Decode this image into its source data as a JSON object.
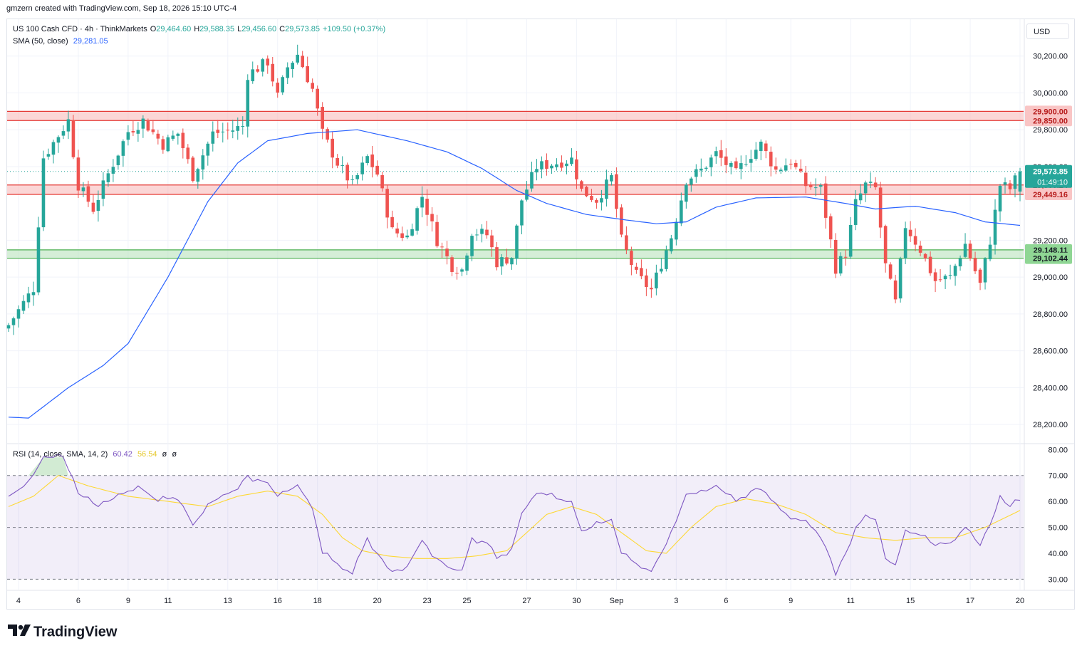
{
  "header": {
    "created_by": "gmzern created with TradingView.com, Sep 18, 2026 15:10 UTC-4"
  },
  "legend": {
    "symbol": "US 100 Cash CFD · 4h · ThinkMarkets",
    "open_label": "O",
    "open": "29,464.60",
    "high_label": "H",
    "high": "29,588.35",
    "low_label": "L",
    "low": "29,456.60",
    "close_label": "C",
    "close": "29,573.85",
    "change": "+109.50 (+0.37%)",
    "sma_label": "SMA (50, close)",
    "sma_value": "29,281.05"
  },
  "rsi_legend": {
    "label": "RSI (14, close, SMA, 14, 2)",
    "rsi_value": "60.42",
    "sma_value": "56.54",
    "extra1": "ø",
    "extra2": "ø"
  },
  "currency": "USD",
  "brand": "TradingView",
  "colors": {
    "up": "#26a69a",
    "down": "#ef5350",
    "sma": "#2962ff",
    "rsi": "#7e57c2",
    "rsi_sma": "#fdd835",
    "resistance_band": "#f7b4b4",
    "support_band": "#b3e0b6",
    "price_tag": "#26a69a"
  },
  "chart_data": [
    {
      "type": "candlestick",
      "title": "US 100 Cash CFD · 4h · ThinkMarkets",
      "ylim": [
        28100,
        30400
      ],
      "y_ticks": [
        "30,200.00",
        "30,000.00",
        "29,800.00",
        "29,600.00",
        "29,200.00",
        "29,000.00",
        "28,800.00",
        "28,600.00",
        "28,400.00",
        "28,200.00"
      ],
      "y_tick_values": [
        30200,
        30000,
        29800,
        29600,
        29200,
        29000,
        28800,
        28600,
        28400,
        28200
      ],
      "x_ticks": [
        "4",
        "6",
        "9",
        "11",
        "13",
        "16",
        "18",
        "20",
        "23",
        "25",
        "27",
        "30",
        "Sep",
        "3",
        "6",
        "9",
        "11",
        "15",
        "17",
        "20"
      ],
      "x_tick_index": [
        2,
        14,
        24,
        32,
        44,
        54,
        62,
        74,
        84,
        92,
        104,
        114,
        122,
        134,
        144,
        157,
        169,
        181,
        193,
        203
      ],
      "candles_count": 204,
      "keypoints": [
        {
          "i": 0,
          "p": 28740
        },
        {
          "i": 5,
          "p": 28940
        },
        {
          "i": 7,
          "p": 29650
        },
        {
          "i": 12,
          "p": 29850
        },
        {
          "i": 14,
          "p": 29500
        },
        {
          "i": 17,
          "p": 29370
        },
        {
          "i": 20,
          "p": 29560
        },
        {
          "i": 24,
          "p": 29790
        },
        {
          "i": 27,
          "p": 29850
        },
        {
          "i": 31,
          "p": 29720
        },
        {
          "i": 34,
          "p": 29780
        },
        {
          "i": 37,
          "p": 29550
        },
        {
          "i": 41,
          "p": 29780
        },
        {
          "i": 45,
          "p": 29800
        },
        {
          "i": 47,
          "p": 29820
        },
        {
          "i": 48,
          "p": 30100
        },
        {
          "i": 52,
          "p": 30170
        },
        {
          "i": 54,
          "p": 29980
        },
        {
          "i": 56,
          "p": 30140
        },
        {
          "i": 58,
          "p": 30210
        },
        {
          "i": 61,
          "p": 30020
        },
        {
          "i": 63,
          "p": 29780
        },
        {
          "i": 66,
          "p": 29620
        },
        {
          "i": 69,
          "p": 29500
        },
        {
          "i": 72,
          "p": 29650
        },
        {
          "i": 74,
          "p": 29560
        },
        {
          "i": 77,
          "p": 29250
        },
        {
          "i": 80,
          "p": 29220
        },
        {
          "i": 83,
          "p": 29440
        },
        {
          "i": 86,
          "p": 29200
        },
        {
          "i": 89,
          "p": 29060
        },
        {
          "i": 91,
          "p": 29040
        },
        {
          "i": 93,
          "p": 29250
        },
        {
          "i": 96,
          "p": 29230
        },
        {
          "i": 98,
          "p": 29080
        },
        {
          "i": 101,
          "p": 29110
        },
        {
          "i": 103,
          "p": 29420
        },
        {
          "i": 106,
          "p": 29600
        },
        {
          "i": 110,
          "p": 29620
        },
        {
          "i": 113,
          "p": 29640
        },
        {
          "i": 115,
          "p": 29470
        },
        {
          "i": 118,
          "p": 29420
        },
        {
          "i": 121,
          "p": 29540
        },
        {
          "i": 123,
          "p": 29200
        },
        {
          "i": 126,
          "p": 29010
        },
        {
          "i": 129,
          "p": 28930
        },
        {
          "i": 133,
          "p": 29220
        },
        {
          "i": 136,
          "p": 29530
        },
        {
          "i": 139,
          "p": 29580
        },
        {
          "i": 142,
          "p": 29670
        },
        {
          "i": 146,
          "p": 29560
        },
        {
          "i": 148,
          "p": 29640
        },
        {
          "i": 151,
          "p": 29720
        },
        {
          "i": 154,
          "p": 29580
        },
        {
          "i": 157,
          "p": 29630
        },
        {
          "i": 160,
          "p": 29500
        },
        {
          "i": 163,
          "p": 29480
        },
        {
          "i": 166,
          "p": 29050
        },
        {
          "i": 168,
          "p": 29130
        },
        {
          "i": 170,
          "p": 29400
        },
        {
          "i": 172,
          "p": 29500
        },
        {
          "i": 174,
          "p": 29480
        },
        {
          "i": 176,
          "p": 29060
        },
        {
          "i": 178,
          "p": 28860
        },
        {
          "i": 180,
          "p": 29280
        },
        {
          "i": 183,
          "p": 29150
        },
        {
          "i": 186,
          "p": 28980
        },
        {
          "i": 189,
          "p": 29000
        },
        {
          "i": 192,
          "p": 29180
        },
        {
          "i": 195,
          "p": 28960
        },
        {
          "i": 197,
          "p": 29200
        },
        {
          "i": 199,
          "p": 29500
        },
        {
          "i": 201,
          "p": 29480
        },
        {
          "i": 203,
          "p": 29574
        }
      ],
      "sma_keypoints": [
        {
          "i": 0,
          "p": 28240
        },
        {
          "i": 4,
          "p": 28235
        },
        {
          "i": 12,
          "p": 28400
        },
        {
          "i": 19,
          "p": 28520
        },
        {
          "i": 24,
          "p": 28640
        },
        {
          "i": 32,
          "p": 29000
        },
        {
          "i": 40,
          "p": 29410
        },
        {
          "i": 46,
          "p": 29620
        },
        {
          "i": 52,
          "p": 29740
        },
        {
          "i": 60,
          "p": 29780
        },
        {
          "i": 70,
          "p": 29800
        },
        {
          "i": 80,
          "p": 29740
        },
        {
          "i": 88,
          "p": 29680
        },
        {
          "i": 95,
          "p": 29590
        },
        {
          "i": 102,
          "p": 29470
        },
        {
          "i": 108,
          "p": 29400
        },
        {
          "i": 116,
          "p": 29340
        },
        {
          "i": 124,
          "p": 29310
        },
        {
          "i": 130,
          "p": 29290
        },
        {
          "i": 136,
          "p": 29300
        },
        {
          "i": 142,
          "p": 29380
        },
        {
          "i": 150,
          "p": 29430
        },
        {
          "i": 160,
          "p": 29435
        },
        {
          "i": 168,
          "p": 29400
        },
        {
          "i": 174,
          "p": 29370
        },
        {
          "i": 182,
          "p": 29385
        },
        {
          "i": 190,
          "p": 29350
        },
        {
          "i": 196,
          "p": 29300
        },
        {
          "i": 203,
          "p": 29281
        }
      ],
      "horizontal_zones": [
        {
          "kind": "resistance",
          "from": 29850,
          "to": 29900,
          "labels": [
            "29,900.00",
            "29,850.00"
          ]
        },
        {
          "kind": "resistance",
          "from": 29449.16,
          "to": 29500.24,
          "labels": [
            "29,500.24",
            "29,449.16"
          ]
        },
        {
          "kind": "support",
          "from": 29102.44,
          "to": 29148.11,
          "labels": [
            "29,148.11",
            "29,102.44"
          ]
        }
      ],
      "last_price": {
        "value": 29573.85,
        "label": "29,573.85",
        "countdown": "01:49:10"
      }
    },
    {
      "type": "line",
      "title": "RSI (14, close, SMA, 14, 2)",
      "ylim": [
        26,
        82
      ],
      "y_ticks": [
        "80.00",
        "70.00",
        "60.00",
        "50.00",
        "40.00",
        "30.00"
      ],
      "y_tick_values": [
        80,
        70,
        60,
        50,
        40,
        30
      ],
      "band": [
        30,
        70
      ],
      "midline": 50,
      "rsi_keypoints": [
        {
          "i": 0,
          "v": 62
        },
        {
          "i": 4,
          "v": 67
        },
        {
          "i": 7,
          "v": 77
        },
        {
          "i": 11,
          "v": 77
        },
        {
          "i": 14,
          "v": 63
        },
        {
          "i": 18,
          "v": 58
        },
        {
          "i": 22,
          "v": 62
        },
        {
          "i": 26,
          "v": 66
        },
        {
          "i": 30,
          "v": 60
        },
        {
          "i": 34,
          "v": 62
        },
        {
          "i": 37,
          "v": 51
        },
        {
          "i": 41,
          "v": 60
        },
        {
          "i": 45,
          "v": 64
        },
        {
          "i": 48,
          "v": 70
        },
        {
          "i": 52,
          "v": 67
        },
        {
          "i": 54,
          "v": 62
        },
        {
          "i": 58,
          "v": 66
        },
        {
          "i": 61,
          "v": 58
        },
        {
          "i": 63,
          "v": 40
        },
        {
          "i": 66,
          "v": 36
        },
        {
          "i": 69,
          "v": 32
        },
        {
          "i": 72,
          "v": 46
        },
        {
          "i": 74,
          "v": 40
        },
        {
          "i": 77,
          "v": 33
        },
        {
          "i": 80,
          "v": 35
        },
        {
          "i": 83,
          "v": 45
        },
        {
          "i": 86,
          "v": 38
        },
        {
          "i": 89,
          "v": 34
        },
        {
          "i": 91,
          "v": 33
        },
        {
          "i": 93,
          "v": 46
        },
        {
          "i": 96,
          "v": 44
        },
        {
          "i": 98,
          "v": 38
        },
        {
          "i": 101,
          "v": 42
        },
        {
          "i": 103,
          "v": 55
        },
        {
          "i": 106,
          "v": 64
        },
        {
          "i": 110,
          "v": 61
        },
        {
          "i": 113,
          "v": 60
        },
        {
          "i": 115,
          "v": 48
        },
        {
          "i": 118,
          "v": 51
        },
        {
          "i": 121,
          "v": 53
        },
        {
          "i": 123,
          "v": 40
        },
        {
          "i": 126,
          "v": 36
        },
        {
          "i": 129,
          "v": 33
        },
        {
          "i": 133,
          "v": 47
        },
        {
          "i": 136,
          "v": 63
        },
        {
          "i": 139,
          "v": 63
        },
        {
          "i": 142,
          "v": 66
        },
        {
          "i": 146,
          "v": 60
        },
        {
          "i": 148,
          "v": 63
        },
        {
          "i": 151,
          "v": 66
        },
        {
          "i": 154,
          "v": 58
        },
        {
          "i": 157,
          "v": 54
        },
        {
          "i": 160,
          "v": 52
        },
        {
          "i": 163,
          "v": 47
        },
        {
          "i": 166,
          "v": 33
        },
        {
          "i": 168,
          "v": 40
        },
        {
          "i": 170,
          "v": 50
        },
        {
          "i": 172,
          "v": 54
        },
        {
          "i": 174,
          "v": 53
        },
        {
          "i": 176,
          "v": 38
        },
        {
          "i": 178,
          "v": 35
        },
        {
          "i": 180,
          "v": 49
        },
        {
          "i": 183,
          "v": 47
        },
        {
          "i": 186,
          "v": 43
        },
        {
          "i": 189,
          "v": 44
        },
        {
          "i": 192,
          "v": 50
        },
        {
          "i": 195,
          "v": 43
        },
        {
          "i": 197,
          "v": 51
        },
        {
          "i": 199,
          "v": 61
        },
        {
          "i": 201,
          "v": 58
        },
        {
          "i": 203,
          "v": 60.42
        }
      ],
      "rsi_sma_keypoints": [
        {
          "i": 0,
          "v": 58
        },
        {
          "i": 5,
          "v": 62
        },
        {
          "i": 10,
          "v": 70
        },
        {
          "i": 16,
          "v": 66
        },
        {
          "i": 24,
          "v": 62
        },
        {
          "i": 32,
          "v": 60
        },
        {
          "i": 40,
          "v": 58
        },
        {
          "i": 46,
          "v": 62
        },
        {
          "i": 52,
          "v": 64
        },
        {
          "i": 58,
          "v": 62
        },
        {
          "i": 63,
          "v": 55
        },
        {
          "i": 67,
          "v": 46
        },
        {
          "i": 71,
          "v": 41
        },
        {
          "i": 76,
          "v": 39
        },
        {
          "i": 82,
          "v": 38
        },
        {
          "i": 88,
          "v": 38
        },
        {
          "i": 94,
          "v": 39
        },
        {
          "i": 100,
          "v": 41
        },
        {
          "i": 104,
          "v": 48
        },
        {
          "i": 108,
          "v": 55
        },
        {
          "i": 113,
          "v": 58
        },
        {
          "i": 118,
          "v": 55
        },
        {
          "i": 123,
          "v": 48
        },
        {
          "i": 128,
          "v": 41
        },
        {
          "i": 132,
          "v": 40
        },
        {
          "i": 137,
          "v": 50
        },
        {
          "i": 142,
          "v": 58
        },
        {
          "i": 148,
          "v": 61
        },
        {
          "i": 154,
          "v": 59
        },
        {
          "i": 160,
          "v": 55
        },
        {
          "i": 166,
          "v": 48
        },
        {
          "i": 172,
          "v": 46
        },
        {
          "i": 178,
          "v": 45
        },
        {
          "i": 184,
          "v": 46
        },
        {
          "i": 190,
          "v": 46
        },
        {
          "i": 196,
          "v": 50
        },
        {
          "i": 203,
          "v": 56.54
        }
      ]
    }
  ]
}
